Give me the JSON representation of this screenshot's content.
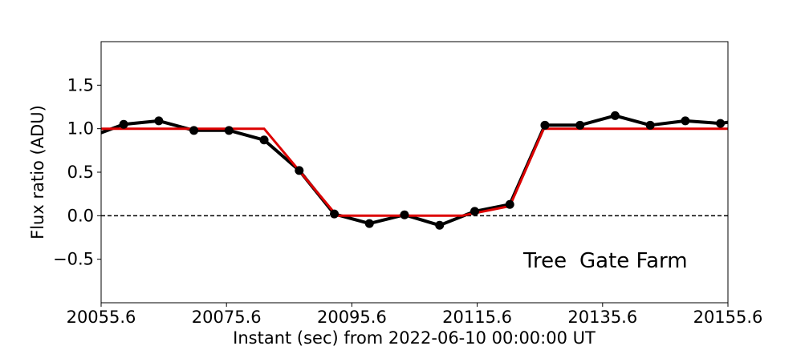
{
  "chart_data": {
    "type": "line",
    "xlabel": "Instant (sec) from 2022-06-10 00:00:00 UT",
    "ylabel": "Flux ratio (ADU)",
    "xlim": [
      20055.6,
      20155.6
    ],
    "ylim": [
      -1.0,
      2.0
    ],
    "xticks": [
      20055.6,
      20075.6,
      20095.6,
      20115.6,
      20135.6,
      20155.6
    ],
    "xtick_labels": [
      "20055.6",
      "20075.6",
      "20095.6",
      "20115.6",
      "20135.6",
      "20155.6"
    ],
    "yticks": [
      -0.5,
      0.0,
      0.5,
      1.0,
      1.5
    ],
    "ytick_labels": [
      "−0.5",
      "0.0",
      "0.5",
      "1.0",
      "1.5"
    ],
    "annotations": [
      {
        "text": "Tree",
        "x": 20140.0,
        "y": -0.52
      },
      {
        "text": "Gate Farm",
        "x": 20140.0,
        "y": -0.52
      }
    ],
    "grid": false,
    "reference_line": {
      "y": 0.0,
      "style": "dashed",
      "color": "#000000"
    },
    "series": [
      {
        "color": "#000000",
        "marker": "circle",
        "x": [
          20053.6,
          20059.2,
          20064.8,
          20070.4,
          20076.0,
          20081.6,
          20087.2,
          20092.8,
          20098.4,
          20104.0,
          20109.6,
          20115.2,
          20120.8,
          20126.4,
          20132.0,
          20137.6,
          20143.2,
          20148.8,
          20154.4,
          20160.0
        ],
        "y": [
          0.9,
          1.05,
          1.09,
          0.98,
          0.98,
          0.87,
          0.52,
          0.02,
          -0.09,
          0.01,
          -0.11,
          0.05,
          0.13,
          1.04,
          1.04,
          1.15,
          1.04,
          1.09,
          1.06,
          1.12
        ]
      },
      {
        "color": "#dd0000",
        "marker": "none",
        "x": [
          20055.6,
          20081.6,
          20093.2,
          20113.2,
          20120.8,
          20126.2,
          20155.6
        ],
        "y": [
          1.0,
          1.0,
          0.0,
          0.0,
          0.11,
          1.0,
          1.0
        ]
      }
    ]
  }
}
